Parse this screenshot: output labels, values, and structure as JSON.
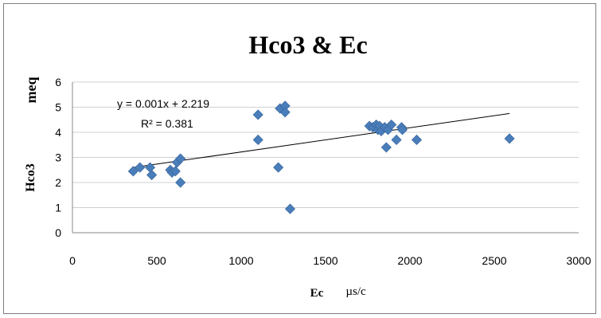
{
  "chart_data": {
    "type": "scatter",
    "title": "Hco3 & Ec",
    "xlabel": "Ec",
    "xlabel_unit": "µs/c",
    "ylabel": "Hco3",
    "ylabel_unit": "meq",
    "xlim": [
      0,
      3000
    ],
    "ylim": [
      0,
      6
    ],
    "xticks": [
      0,
      500,
      1000,
      1500,
      2000,
      2500,
      3000
    ],
    "yticks": [
      0,
      1,
      2,
      3,
      4,
      5,
      6
    ],
    "grid": "horizontal",
    "marker_color": "#4a7ebb",
    "trendline_color": "#000000",
    "points": [
      {
        "x": 360,
        "y": 2.45
      },
      {
        "x": 400,
        "y": 2.6
      },
      {
        "x": 460,
        "y": 2.6
      },
      {
        "x": 470,
        "y": 2.3
      },
      {
        "x": 580,
        "y": 2.5
      },
      {
        "x": 590,
        "y": 2.4
      },
      {
        "x": 610,
        "y": 2.45
      },
      {
        "x": 620,
        "y": 2.8
      },
      {
        "x": 640,
        "y": 2.95
      },
      {
        "x": 640,
        "y": 2.0
      },
      {
        "x": 1100,
        "y": 4.7
      },
      {
        "x": 1100,
        "y": 3.7
      },
      {
        "x": 1220,
        "y": 2.6
      },
      {
        "x": 1230,
        "y": 4.95
      },
      {
        "x": 1260,
        "y": 5.05
      },
      {
        "x": 1260,
        "y": 4.8
      },
      {
        "x": 1290,
        "y": 0.95
      },
      {
        "x": 1760,
        "y": 4.25
      },
      {
        "x": 1780,
        "y": 4.2
      },
      {
        "x": 1800,
        "y": 4.3
      },
      {
        "x": 1810,
        "y": 4.1
      },
      {
        "x": 1820,
        "y": 4.25
      },
      {
        "x": 1830,
        "y": 4.05
      },
      {
        "x": 1850,
        "y": 4.2
      },
      {
        "x": 1860,
        "y": 3.4
      },
      {
        "x": 1870,
        "y": 4.1
      },
      {
        "x": 1890,
        "y": 4.3
      },
      {
        "x": 1920,
        "y": 3.7
      },
      {
        "x": 1950,
        "y": 4.2
      },
      {
        "x": 1955,
        "y": 4.1
      },
      {
        "x": 2040,
        "y": 3.7
      },
      {
        "x": 2590,
        "y": 3.75
      }
    ],
    "trendline": {
      "equation": "y = 0.001x + 2.219",
      "r_squared": "R² = 0.381",
      "x_start": 360,
      "x_end": 2590,
      "y_start": 2.6,
      "y_end": 4.75
    }
  }
}
